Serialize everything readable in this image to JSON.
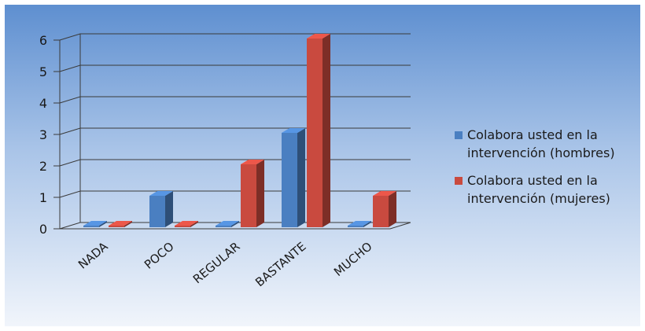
{
  "chart_data": {
    "type": "bar",
    "title": "",
    "xlabel": "",
    "ylabel": "",
    "categories": [
      "NADA",
      "POCO",
      "REGULAR",
      "BASTANTE",
      "MUCHO"
    ],
    "series": [
      {
        "name": "Colabora usted en la intervención (hombres)",
        "values": [
          0,
          1,
          0,
          3,
          0
        ]
      },
      {
        "name": "Colabora usted en la intervención (mujeres)",
        "values": [
          0,
          0,
          2,
          6,
          1
        ]
      }
    ],
    "yticks": [
      "0",
      "1",
      "2",
      "3",
      "4",
      "5",
      "6"
    ],
    "ylim": [
      0,
      6
    ],
    "grid": true,
    "legend": "right",
    "three_d": true
  },
  "colors": {
    "hombres": "#4a7fc1",
    "mujeres": "#c94a3f",
    "background_top": "#5e8fd0",
    "background_bottom": "#f1f5fb"
  }
}
